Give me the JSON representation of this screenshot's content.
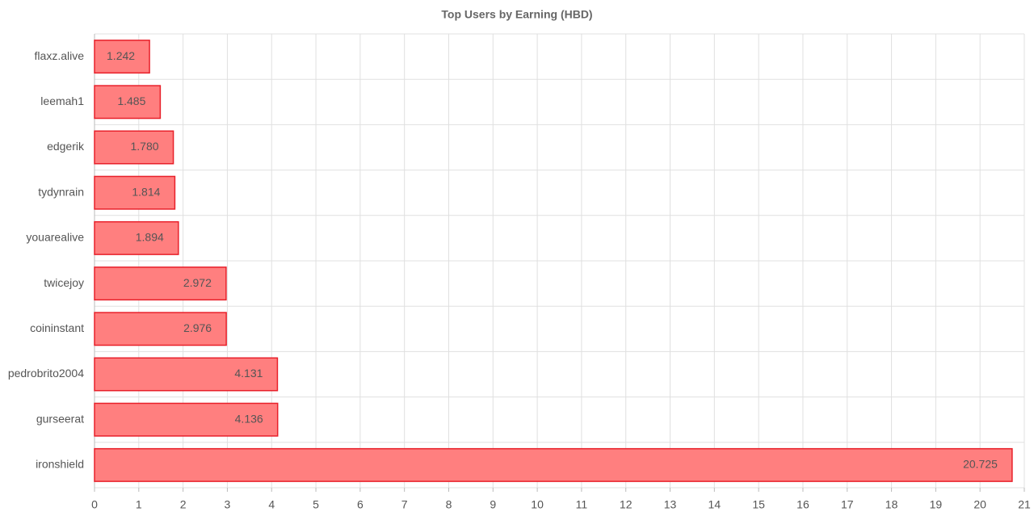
{
  "chart_data": {
    "type": "bar",
    "orientation": "horizontal",
    "title": "Top Users by Earning (HBD)",
    "categories": [
      "flaxz.alive",
      "leemah1",
      "edgerik",
      "tydynrain",
      "youarealive",
      "twicejoy",
      "coininstant",
      "pedrobrito2004",
      "gurseerat",
      "ironshield"
    ],
    "values": [
      1.242,
      1.485,
      1.78,
      1.814,
      1.894,
      2.972,
      2.976,
      4.131,
      4.136,
      20.725
    ],
    "value_labels": [
      "1.242",
      "1.485",
      "1.780",
      "1.814",
      "1.894",
      "2.972",
      "2.976",
      "4.131",
      "4.136",
      "20.725"
    ],
    "color": "#ff7f7f",
    "edge_color": "#e8202a",
    "xlim": [
      0,
      21
    ],
    "xticks": [
      0,
      1,
      2,
      3,
      4,
      5,
      6,
      7,
      8,
      9,
      10,
      11,
      12,
      13,
      14,
      15,
      16,
      17,
      18,
      19,
      20,
      21
    ],
    "grid": true
  }
}
